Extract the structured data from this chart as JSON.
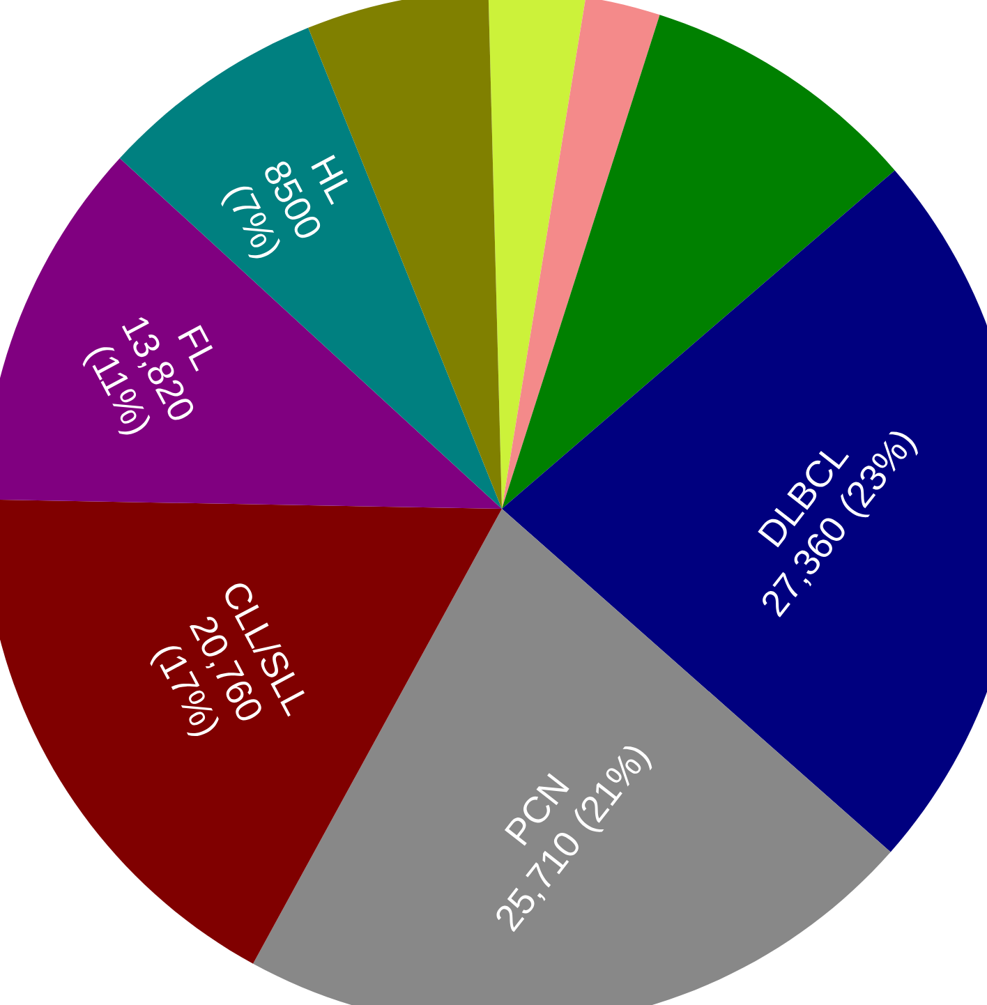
{
  "chart_data": {
    "type": "pie",
    "categories": [
      null,
      null,
      null,
      "DLBCL",
      "PCN",
      "CLL/SLL",
      "FL",
      "HL",
      null
    ],
    "values": [
      3600,
      2800,
      10500,
      27360,
      25710,
      20760,
      13820,
      8500,
      6800
    ],
    "value_labels": [
      null,
      null,
      null,
      "27,360 (23%)",
      "25,710 (21%)",
      "20,760 (17%)",
      "13,820 (11%)",
      "8500 (7%)",
      null
    ],
    "colors": [
      "#ccf23a",
      "#f48a8a",
      "#008000",
      "#00007f",
      "#888888",
      "#800000",
      "#800080",
      "#008080",
      "#808000"
    ]
  }
}
